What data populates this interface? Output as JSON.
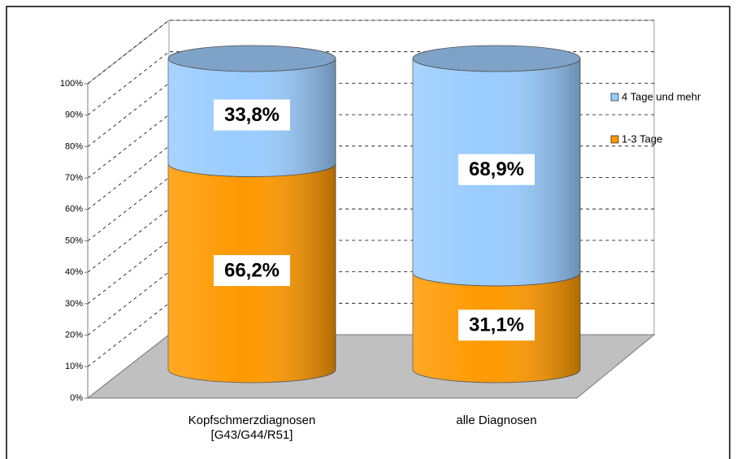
{
  "chart_data": {
    "type": "stacked-cylinder",
    "categories": [
      "Kopfschmerzdiagnosen\n[G43/G44/R51]",
      "alle Diagnosen"
    ],
    "series": [
      {
        "name": "1-3 Tage",
        "color": "#ff9900",
        "values": [
          66.2,
          31.1
        ],
        "value_labels": [
          "66,2%",
          "31,1%"
        ]
      },
      {
        "name": "4 Tage und mehr",
        "color": "#99ccff",
        "values": [
          33.8,
          68.9
        ],
        "value_labels": [
          "33,8%",
          "68,9%"
        ]
      }
    ],
    "ylim": [
      0,
      100
    ],
    "yticks": [
      {
        "value": 0,
        "label": "0%"
      },
      {
        "value": 10,
        "label": "10%"
      },
      {
        "value": 20,
        "label": "20%"
      },
      {
        "value": 30,
        "label": "30%"
      },
      {
        "value": 40,
        "label": "40%"
      },
      {
        "value": 50,
        "label": "50%"
      },
      {
        "value": 60,
        "label": "60%"
      },
      {
        "value": 70,
        "label": "70%"
      },
      {
        "value": 80,
        "label": "80%"
      },
      {
        "value": 90,
        "label": "90%"
      },
      {
        "value": 100,
        "label": "100%"
      }
    ],
    "grid": true,
    "legend": "right"
  }
}
